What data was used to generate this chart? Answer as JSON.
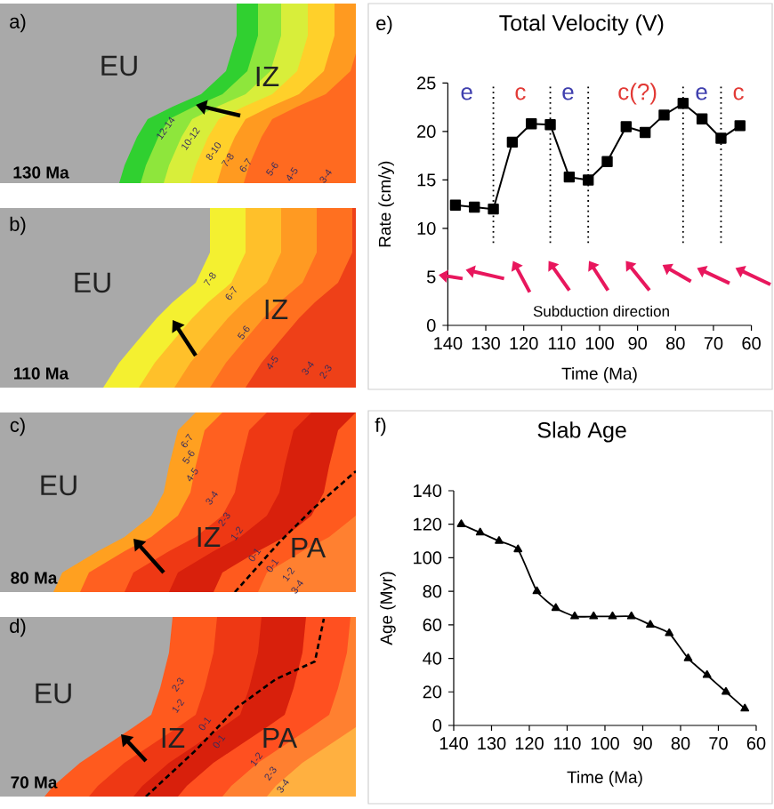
{
  "chart_data": [
    {
      "type": "other",
      "annotations": [
        "a)",
        "EU",
        "IZ",
        "130 Ma",
        "12-14",
        "10-12",
        "8-10",
        "7-8",
        "6-7",
        "5-6",
        "4-5",
        "3-4"
      ]
    },
    {
      "type": "other",
      "annotations": [
        "b)",
        "EU",
        "IZ",
        "110 Ma",
        "7-8",
        "6-7",
        "5-6",
        "4-5",
        "3-4",
        "2-3"
      ]
    },
    {
      "type": "other",
      "annotations": [
        "c)",
        "EU",
        "IZ",
        "PA",
        "80 Ma",
        "6-7",
        "5-6",
        "4-5",
        "3-4",
        "2-3",
        "1-2",
        "0-1",
        "0-1",
        "1-2",
        "3-4"
      ]
    },
    {
      "type": "other",
      "annotations": [
        "d)",
        "EU",
        "IZ",
        "PA",
        "70 Ma",
        "2-3",
        "1-2",
        "0-1",
        "0-1",
        "1-2",
        "2-3",
        "3-4"
      ]
    },
    {
      "type": "line",
      "title": "Total Velocity (V)",
      "xlabel": "Time (Ma)",
      "ylabel": "Rate (cm/y)",
      "x": [
        138,
        133,
        128,
        123,
        118,
        113,
        108,
        103,
        98,
        93,
        88,
        83,
        78,
        73,
        68,
        63
      ],
      "values": [
        12.4,
        12.2,
        12.0,
        18.9,
        20.8,
        20.7,
        15.3,
        15.0,
        16.9,
        20.5,
        19.9,
        21.7,
        22.9,
        21.3,
        19.3,
        20.6
      ],
      "color": "#000000",
      "marker": "square",
      "xlim": [
        140,
        60
      ],
      "xticks": [
        140,
        130,
        120,
        110,
        100,
        90,
        80,
        70,
        60
      ],
      "ylim": [
        0,
        25
      ],
      "yticks": [
        0,
        5,
        10,
        15,
        20,
        25
      ],
      "ref_lines": [
        {
          "axis": "x",
          "value": 128,
          "color": "#000000",
          "line_style": "dotted"
        },
        {
          "axis": "x",
          "value": 113,
          "color": "#000000",
          "line_style": "dotted"
        },
        {
          "axis": "x",
          "value": 103,
          "color": "#000000",
          "line_style": "dotted"
        },
        {
          "axis": "x",
          "value": 78,
          "color": "#000000",
          "line_style": "dotted"
        },
        {
          "axis": "x",
          "value": 68,
          "color": "#000000",
          "line_style": "dotted"
        }
      ],
      "annotations": [
        "e)",
        "e",
        "c",
        "e",
        "c(?)",
        "e",
        "c",
        "Subduction direction"
      ]
    },
    {
      "type": "line",
      "title": "Slab Age",
      "xlabel": "Time (Ma)",
      "ylabel": "Age (Myr)",
      "x": [
        138,
        133,
        128,
        123,
        118,
        113,
        108,
        103,
        98,
        93,
        88,
        83,
        78,
        73,
        68,
        63
      ],
      "values": [
        120,
        115,
        110,
        105,
        80,
        70,
        65,
        65,
        65,
        65,
        60,
        55,
        40,
        30,
        20,
        10
      ],
      "color": "#000000",
      "marker": "triangle",
      "xlim": [
        140,
        60
      ],
      "xticks": [
        140,
        130,
        120,
        110,
        100,
        90,
        80,
        70,
        60
      ],
      "ylim": [
        0,
        140
      ],
      "yticks": [
        0,
        20,
        40,
        60,
        80,
        100,
        120,
        140
      ],
      "annotations": [
        "f)"
      ]
    }
  ]
}
